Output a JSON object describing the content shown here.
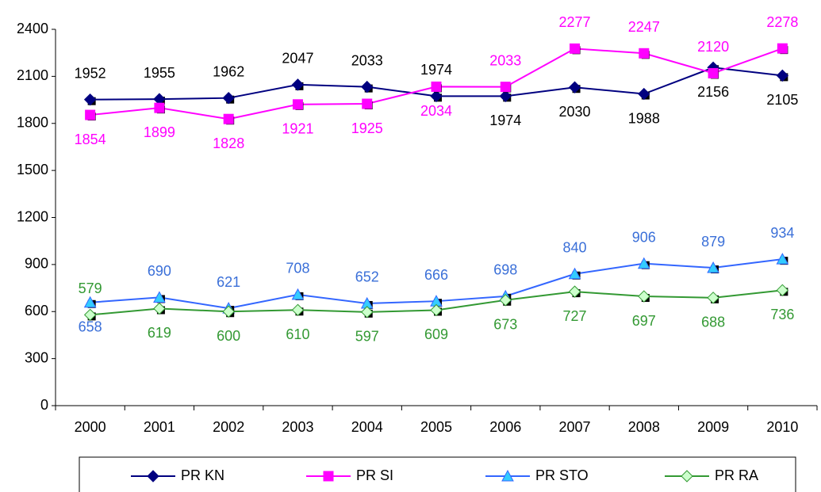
{
  "chart_data": {
    "type": "line",
    "categories": [
      "2000",
      "2001",
      "2002",
      "2003",
      "2004",
      "2005",
      "2006",
      "2007",
      "2008",
      "2009",
      "2010"
    ],
    "ylim": [
      0,
      2400
    ],
    "yticks": [
      0,
      300,
      600,
      900,
      1200,
      1500,
      1800,
      2100,
      2400
    ],
    "grid": false,
    "legend": "bottom",
    "series": [
      {
        "name": "PR KN",
        "color": "#000080",
        "label_color": "#000000",
        "marker": "diamond",
        "marker_color": "#000080",
        "values": [
          1952,
          1955,
          1962,
          2047,
          2033,
          1974,
          1974,
          2030,
          1988,
          2156,
          2105
        ]
      },
      {
        "name": "PR SI",
        "color": "#ff00ff",
        "label_color": "#ff00ff",
        "marker": "square",
        "marker_color": "#ff00ff",
        "values": [
          1854,
          1899,
          1828,
          1921,
          1925,
          2034,
          2033,
          2277,
          2247,
          2120,
          2278
        ]
      },
      {
        "name": "PR STO",
        "color": "#3366ff",
        "label_color": "#3a6fd8",
        "marker": "triangle",
        "marker_color": "#33ccff",
        "values": [
          658,
          690,
          621,
          708,
          652,
          666,
          698,
          840,
          906,
          879,
          934
        ]
      },
      {
        "name": "PR RA",
        "color": "#339933",
        "label_color": "#339933",
        "marker": "diamond",
        "marker_color": "#ccffcc",
        "values": [
          579,
          619,
          600,
          610,
          597,
          609,
          673,
          727,
          697,
          688,
          736
        ]
      }
    ]
  }
}
